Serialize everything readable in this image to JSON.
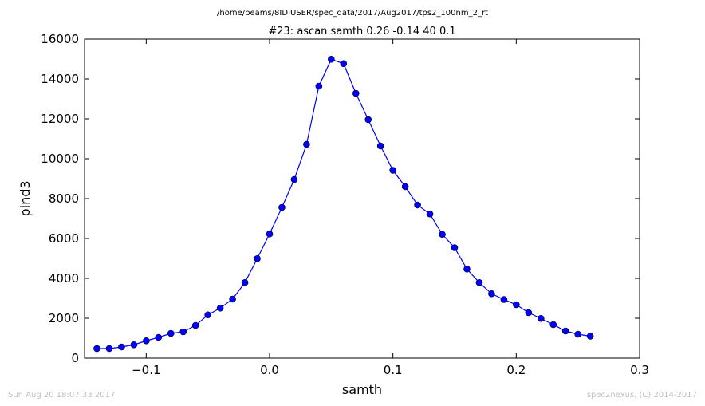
{
  "suptitle": "/home/beams/8IDIUSER/spec_data/2017/Aug2017/tps2_100nm_2_rt",
  "footer_left": "Sun Aug 20 18:07:33 2017",
  "footer_right": "spec2nexus, (C) 2014-2017",
  "chart_data": {
    "type": "line",
    "title": "#23: ascan  samth 0.26 -0.14  40 0.1",
    "xlabel": "samth",
    "ylabel": "pind3",
    "xlim": [
      -0.15,
      0.3
    ],
    "ylim": [
      0,
      16000
    ],
    "xticks": [
      -0.1,
      0.0,
      0.1,
      0.2,
      0.3
    ],
    "xtick_labels": [
      "−0.1",
      "0.0",
      "0.1",
      "0.2",
      "0.3"
    ],
    "yticks": [
      0,
      2000,
      4000,
      6000,
      8000,
      10000,
      12000,
      14000,
      16000
    ],
    "ytick_labels": [
      "0",
      "2000",
      "4000",
      "6000",
      "8000",
      "10000",
      "12000",
      "14000",
      "16000"
    ],
    "grid": false,
    "legend": false,
    "series": [
      {
        "color": "#0000ff",
        "marker": "circle",
        "x": [
          -0.14,
          -0.13,
          -0.12,
          -0.11,
          -0.1,
          -0.09,
          -0.08,
          -0.07,
          -0.06,
          -0.05,
          -0.04,
          -0.03,
          -0.02,
          -0.01,
          0.0,
          0.01,
          0.02,
          0.03,
          0.04,
          0.05,
          0.06,
          0.07,
          0.08,
          0.09,
          0.1,
          0.11,
          0.12,
          0.13,
          0.14,
          0.15,
          0.16,
          0.17,
          0.18,
          0.19,
          0.2,
          0.21,
          0.22,
          0.23,
          0.24,
          0.25,
          0.26
        ],
        "y": [
          480,
          480,
          560,
          670,
          870,
          1040,
          1240,
          1320,
          1640,
          2170,
          2510,
          2960,
          3790,
          4990,
          6230,
          7560,
          8960,
          10720,
          13640,
          14990,
          14770,
          13280,
          11960,
          10640,
          9420,
          8600,
          7680,
          7230,
          6210,
          5540,
          4470,
          3790,
          3230,
          2940,
          2680,
          2280,
          1990,
          1680,
          1360,
          1200,
          1100
        ]
      }
    ]
  }
}
